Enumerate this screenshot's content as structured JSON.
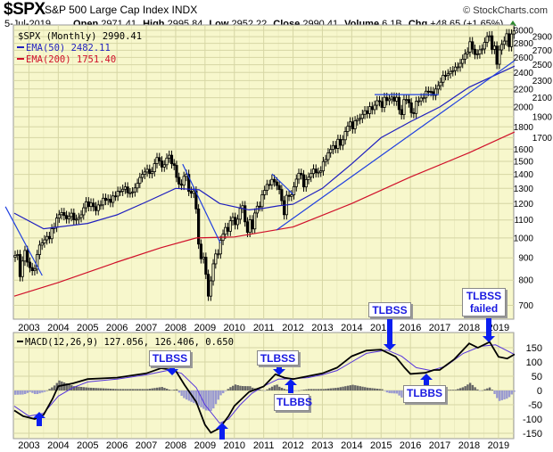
{
  "header": {
    "symbol": "$SPX",
    "name": "S&P 500 Large Cap Index INDX",
    "copyright": "© StockCharts.com",
    "date": "5-Jul-2019",
    "open_label": "Open",
    "open": "2971.41",
    "high_label": "High",
    "high": "2995.84",
    "low_label": "Low",
    "low": "2952.22",
    "close_label": "Close",
    "close": "2990.41",
    "volume_label": "Volume",
    "volume": "6.1B",
    "chg_label": "Chg",
    "chg": "+48.65 (+1.65%)",
    "chg_icon": "up-triangle-icon"
  },
  "legend": {
    "price": "$SPX (Monthly) 2990.41",
    "ema50": "EMA(50) 2482.11",
    "ema200": "EMA(200) 1751.40",
    "macd": "MACD(12,26,9) 127.056, 126.406, 0.650"
  },
  "colors": {
    "panel_bg": "#f7f7cc",
    "grid": "#d6d6a4",
    "ema50": "#1f1fbf",
    "ema200": "#d0102a",
    "trendline": "#2040e0",
    "macd": "#000000",
    "signal": "#5533dd",
    "hist_pos": "#666666",
    "hist_neg": "#9a9ad0",
    "callout_text": "#1a1ae0",
    "arrow": "#0a1ef0"
  },
  "annotations": {
    "a1": "TLBSS",
    "a2": "TLBSS",
    "a3": "TLBBS",
    "a4": "TLBSS",
    "a5": "TLBBS",
    "a6_line1": "TLBSS",
    "a6_line2": "failed"
  },
  "chart_data": [
    {
      "type": "candlestick",
      "title": "$SPX (Monthly)",
      "yscale": "log",
      "ylim": [
        650,
        3086
      ],
      "xlim": [
        2002.5,
        2019.55
      ],
      "y_ticks": [
        3000,
        2900,
        2800,
        2700,
        2600,
        2500,
        2400,
        2300,
        2200,
        2100,
        2000,
        1900,
        1800,
        1700,
        1600,
        1500,
        1400,
        1300,
        1200,
        1100,
        1000,
        900,
        800,
        700
      ],
      "x_ticks": [
        "2003",
        "2004",
        "2005",
        "2006",
        "2007",
        "2008",
        "2009",
        "2010",
        "2011",
        "2012",
        "2013",
        "2014",
        "2015",
        "2016",
        "2017",
        "2018",
        "2019"
      ],
      "grid": true,
      "legend_position": "top-left",
      "monthly_closes_by_year": {
        "2002": [
          912,
          916,
          815,
          885,
          936,
          880
        ],
        "2003": [
          855,
          841,
          848,
          916,
          963,
          974,
          990,
          1008,
          996,
          1050,
          1058,
          1111
        ],
        "2004": [
          1131,
          1144,
          1126,
          1107,
          1120,
          1140,
          1101,
          1104,
          1114,
          1130,
          1173,
          1211
        ],
        "2005": [
          1181,
          1203,
          1180,
          1156,
          1191,
          1191,
          1234,
          1220,
          1228,
          1207,
          1249,
          1248
        ],
        "2006": [
          1280,
          1280,
          1294,
          1310,
          1270,
          1270,
          1276,
          1303,
          1335,
          1377,
          1400,
          1418
        ],
        "2007": [
          1438,
          1406,
          1420,
          1482,
          1530,
          1503,
          1455,
          1473,
          1526,
          1549,
          1481,
          1468
        ],
        "2008": [
          1378,
          1330,
          1322,
          1385,
          1400,
          1280,
          1267,
          1282,
          1166,
          968,
          896,
          903
        ],
        "2009": [
          825,
          735,
          797,
          872,
          919,
          919,
          987,
          1020,
          1057,
          1036,
          1095,
          1115
        ],
        "2010": [
          1073,
          1104,
          1169,
          1186,
          1089,
          1030,
          1101,
          1049,
          1141,
          1183,
          1180,
          1257
        ],
        "2011": [
          1286,
          1327,
          1325,
          1363,
          1345,
          1320,
          1292,
          1218,
          1131,
          1253,
          1246,
          1257
        ],
        "2012": [
          1312,
          1365,
          1408,
          1397,
          1310,
          1362,
          1379,
          1406,
          1440,
          1412,
          1416,
          1426
        ],
        "2013": [
          1498,
          1514,
          1569,
          1597,
          1630,
          1606,
          1685,
          1633,
          1681,
          1756,
          1805,
          1848
        ],
        "2014": [
          1782,
          1859,
          1872,
          1883,
          1923,
          1960,
          1931,
          2003,
          1972,
          2018,
          2067,
          2058
        ],
        "2015": [
          1995,
          2104,
          2068,
          2086,
          2107,
          2063,
          2104,
          1972,
          1920,
          2079,
          2080,
          2044
        ],
        "2016": [
          1940,
          1932,
          2060,
          2065,
          2097,
          2099,
          2174,
          2171,
          2168,
          2126,
          2199,
          2239
        ],
        "2017": [
          2279,
          2364,
          2363,
          2384,
          2412,
          2423,
          2470,
          2472,
          2519,
          2575,
          2648,
          2674
        ],
        "2018": [
          2824,
          2714,
          2641,
          2648,
          2705,
          2718,
          2816,
          2902,
          2914,
          2712,
          2760,
          2507
        ],
        "2019": [
          2704,
          2784,
          2834,
          2946,
          2752,
          2942,
          2990
        ]
      },
      "overlays": [
        {
          "name": "EMA(50)",
          "points": [
            [
              2002.5,
              1140
            ],
            [
              2003.5,
              1050
            ],
            [
              2004,
              1060
            ],
            [
              2005,
              1080
            ],
            [
              2006,
              1130
            ],
            [
              2007,
              1210
            ],
            [
              2008,
              1300
            ],
            [
              2008.8,
              1290
            ],
            [
              2009.5,
              1200
            ],
            [
              2010.5,
              1160
            ],
            [
              2011,
              1170
            ],
            [
              2011.5,
              1185
            ],
            [
              2012,
              1195
            ],
            [
              2013,
              1300
            ],
            [
              2014,
              1480
            ],
            [
              2015,
              1700
            ],
            [
              2016,
              1850
            ],
            [
              2017,
              2000
            ],
            [
              2018,
              2220
            ],
            [
              2019.55,
              2482
            ]
          ]
        },
        {
          "name": "EMA(200)",
          "points": [
            [
              2002.5,
              735
            ],
            [
              2004,
              790
            ],
            [
              2006,
              880
            ],
            [
              2007.5,
              950
            ],
            [
              2008.7,
              1000
            ],
            [
              2010,
              1005
            ],
            [
              2012,
              1060
            ],
            [
              2014,
              1200
            ],
            [
              2016,
              1380
            ],
            [
              2018,
              1570
            ],
            [
              2019.55,
              1751
            ]
          ]
        }
      ],
      "trendlines": [
        [
          [
            2002.2,
            1180
          ],
          [
            2003.45,
            820
          ]
        ],
        [
          [
            2008.24,
            1478
          ],
          [
            2009.52,
            974
          ]
        ],
        [
          [
            2011.28,
            1404
          ],
          [
            2012.0,
            1260
          ]
        ],
        [
          [
            2011.44,
            1043
          ],
          [
            2019.55,
            2556
          ]
        ],
        [
          [
            2014.78,
            2135
          ],
          [
            2016.97,
            2135
          ]
        ]
      ]
    },
    {
      "type": "line",
      "title": "MACD(12,26,9)",
      "ylim": [
        -169,
        203
      ],
      "y_ticks": [
        150,
        100,
        50,
        0,
        -50,
        -100,
        -150
      ],
      "x_ticks": [
        "2003",
        "2004",
        "2005",
        "2006",
        "2007",
        "2008",
        "2009",
        "2010",
        "2011",
        "2012",
        "2013",
        "2014",
        "2015",
        "2016",
        "2017",
        "2018",
        "2019"
      ],
      "grid": true,
      "series": [
        {
          "name": "MACD",
          "points": [
            [
              2002.5,
              -70
            ],
            [
              2002.8,
              -90
            ],
            [
              2003.2,
              -100
            ],
            [
              2003.5,
              -85
            ],
            [
              2003.8,
              -30
            ],
            [
              2004,
              15
            ],
            [
              2004.5,
              25
            ],
            [
              2005,
              40
            ],
            [
              2006,
              45
            ],
            [
              2007,
              60
            ],
            [
              2007.5,
              78
            ],
            [
              2008,
              70
            ],
            [
              2008.3,
              20
            ],
            [
              2008.7,
              -40
            ],
            [
              2009,
              -120
            ],
            [
              2009.2,
              -148
            ],
            [
              2009.5,
              -132
            ],
            [
              2009.8,
              -90
            ],
            [
              2010,
              -54
            ],
            [
              2010.5,
              -5
            ],
            [
              2011,
              14
            ],
            [
              2011.4,
              57
            ],
            [
              2011.7,
              45
            ],
            [
              2012,
              40
            ],
            [
              2012.5,
              50
            ],
            [
              2013,
              60
            ],
            [
              2013.5,
              80
            ],
            [
              2014,
              120
            ],
            [
              2014.5,
              140
            ],
            [
              2015,
              143
            ],
            [
              2015.5,
              118
            ],
            [
              2015.8,
              80
            ],
            [
              2016,
              58
            ],
            [
              2016.5,
              62
            ],
            [
              2016.8,
              72
            ],
            [
              2017,
              72
            ],
            [
              2017.5,
              110
            ],
            [
              2018,
              165
            ],
            [
              2018.3,
              150
            ],
            [
              2018.7,
              170
            ],
            [
              2019,
              118
            ],
            [
              2019.3,
              112
            ],
            [
              2019.55,
              127
            ]
          ]
        },
        {
          "name": "Signal",
          "points": [
            [
              2002.5,
              -55
            ],
            [
              2003,
              -90
            ],
            [
              2003.5,
              -80
            ],
            [
              2004,
              -20
            ],
            [
              2004.5,
              10
            ],
            [
              2005,
              30
            ],
            [
              2006,
              40
            ],
            [
              2007,
              55
            ],
            [
              2007.8,
              72
            ],
            [
              2008.2,
              60
            ],
            [
              2008.7,
              10
            ],
            [
              2009,
              -50
            ],
            [
              2009.5,
              -115
            ],
            [
              2009.8,
              -100
            ],
            [
              2010.2,
              -50
            ],
            [
              2010.6,
              -10
            ],
            [
              2011,
              15
            ],
            [
              2011.5,
              40
            ],
            [
              2012,
              42
            ],
            [
              2012.5,
              45
            ],
            [
              2013,
              55
            ],
            [
              2013.5,
              70
            ],
            [
              2014,
              100
            ],
            [
              2014.5,
              130
            ],
            [
              2015.2,
              142
            ],
            [
              2015.7,
              120
            ],
            [
              2016.2,
              80
            ],
            [
              2016.7,
              70
            ],
            [
              2017.2,
              85
            ],
            [
              2017.8,
              130
            ],
            [
              2018.4,
              155
            ],
            [
              2018.9,
              160
            ],
            [
              2019.55,
              126
            ]
          ]
        }
      ],
      "histogram": "MACD minus Signal"
    }
  ]
}
